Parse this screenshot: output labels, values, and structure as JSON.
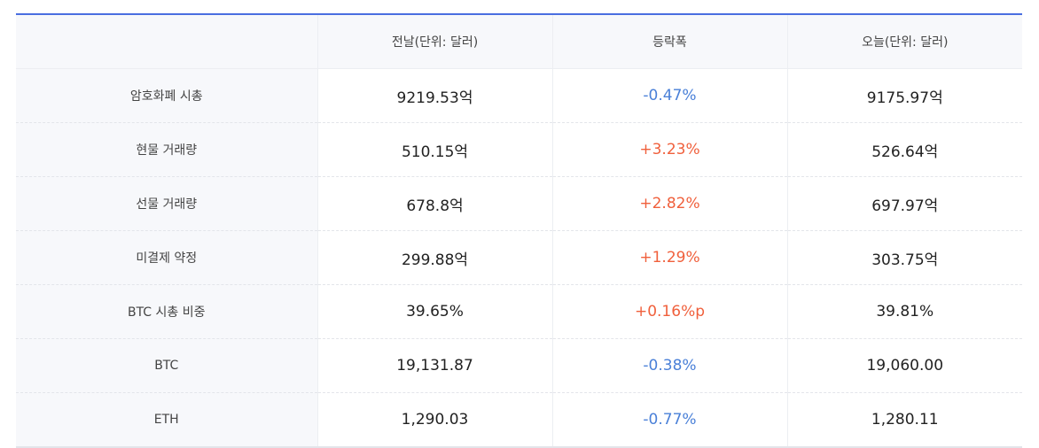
{
  "header": {
    "col1": "",
    "col2": "전날(단위: 달러)",
    "col3": "등락폭",
    "col4": "오늘(단위: 달러)"
  },
  "rows": [
    {
      "label": "암호화폐 시총",
      "prev": "9219.53억",
      "change": "-0.47%",
      "direction": "down",
      "today": "9175.97억"
    },
    {
      "label": "현물 거래량",
      "prev": "510.15억",
      "change": "+3.23%",
      "direction": "up",
      "today": "526.64억"
    },
    {
      "label": "선물 거래량",
      "prev": "678.8억",
      "change": "+2.82%",
      "direction": "up",
      "today": "697.97억"
    },
    {
      "label": "미결제 약정",
      "prev": "299.88억",
      "change": "+1.29%",
      "direction": "up",
      "today": "303.75억"
    },
    {
      "label": "BTC 시총 비중",
      "prev": "39.65%",
      "change": "+0.16%p",
      "direction": "up",
      "today": "39.81%"
    },
    {
      "label": "BTC",
      "prev": "19,131.87",
      "change": "-0.38%",
      "direction": "down",
      "today": "19,060.00"
    },
    {
      "label": "ETH",
      "prev": "1,290.03",
      "change": "-0.77%",
      "direction": "down",
      "today": "1,280.11"
    }
  ],
  "colors": {
    "up": "#f0603c",
    "down": "#4a80d8",
    "header_border": "#4a6ee0"
  }
}
